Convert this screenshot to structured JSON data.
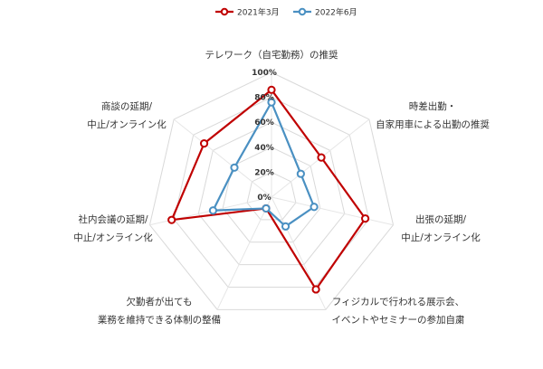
{
  "chart_data": {
    "type": "radar",
    "title": "",
    "axis_range": [
      0,
      100
    ],
    "ticks": [
      "0%",
      "20%",
      "40%",
      "60%",
      "80%",
      "100%"
    ],
    "tick_values": [
      0,
      20,
      40,
      60,
      80,
      100
    ],
    "grid": true,
    "legend_position": "top",
    "axes": [
      [
        "テレワーク（自宅勤務）の推奨"
      ],
      [
        "時差出勤・",
        "自家用車による出勤の推奨"
      ],
      [
        "出張の延期/",
        "中止/オンライン化"
      ],
      [
        "フィジカルで行われる展示会、",
        "イベントやセミナーの参加自粛"
      ],
      [
        "欠勤者が出ても",
        "業務を維持できる体制の整備"
      ],
      [
        "社内会議の延期/",
        "中止/オンライン化"
      ],
      [
        "商談の延期/",
        "中止/オンライン化"
      ]
    ],
    "series": [
      {
        "name": "2021年3月",
        "color": "#c00000",
        "values": [
          86,
          51,
          77,
          82,
          10,
          82,
          69
        ]
      },
      {
        "name": "2022年6月",
        "color": "#4a90c2",
        "values": [
          76,
          30,
          35,
          26,
          10,
          48,
          38
        ]
      }
    ]
  }
}
